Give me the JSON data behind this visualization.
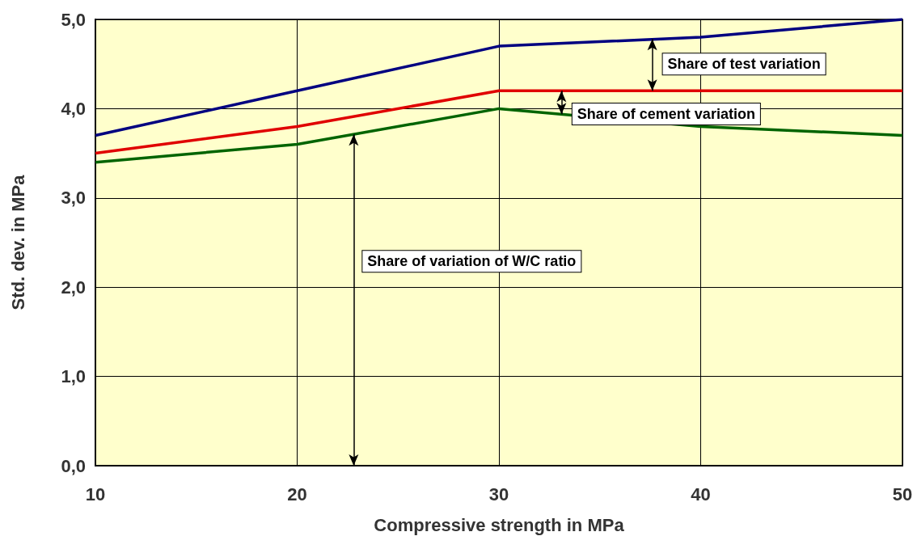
{
  "chart_data": {
    "type": "line",
    "xlabel": "Compressive strength in MPa",
    "ylabel": "Std. dev. in MPa",
    "x": [
      10,
      20,
      30,
      40,
      50
    ],
    "series": [
      {
        "color": "#000080",
        "values": [
          3.7,
          4.2,
          4.7,
          4.8,
          5.0
        ]
      },
      {
        "color": "#e00000",
        "values": [
          3.5,
          3.8,
          4.2,
          4.2,
          4.2
        ]
      },
      {
        "color": "#006400",
        "values": [
          3.4,
          3.6,
          4.0,
          3.8,
          3.7
        ]
      }
    ],
    "xlim": [
      10,
      50
    ],
    "xticks": [
      10,
      20,
      30,
      40,
      50
    ],
    "ylim": [
      0,
      5
    ],
    "yticks": [
      {
        "value": 0,
        "label": "0,0"
      },
      {
        "value": 1,
        "label": "1,0"
      },
      {
        "value": 2,
        "label": "2,0"
      },
      {
        "value": 3,
        "label": "3,0"
      },
      {
        "value": 4,
        "label": "4,0"
      },
      {
        "value": 5,
        "label": "5,0"
      }
    ],
    "grid": true,
    "marker": "none",
    "line_style": "solid",
    "annotations": [
      {
        "text": "Share of test variation",
        "x": 37.6,
        "y": 4.78
      },
      {
        "text": "Share of cement variation",
        "x": 33.1,
        "y": 4.2
      },
      "Share of variation of W/C ratio"
    ]
  }
}
